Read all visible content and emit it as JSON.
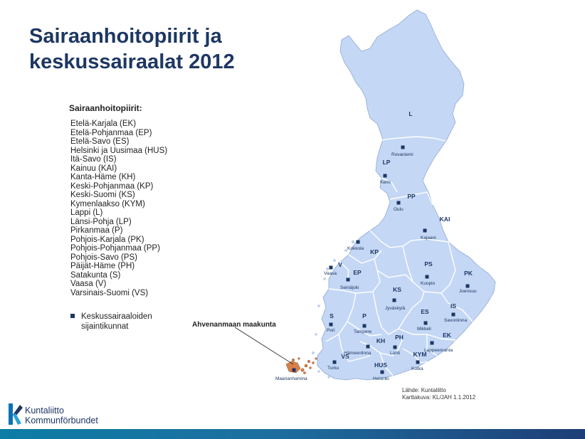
{
  "title": {
    "line1": "Sairaanhoitopiirit ja",
    "line2": "keskussairaalat 2012"
  },
  "legend": {
    "heading": "Sairaanhoitopiirit:",
    "districts": [
      "Etelä-Karjala (EK)",
      "Etelä-Pohjanmaa (EP)",
      "Etelä-Savo (ES)",
      "Helsinki ja Uusimaa (HUS)",
      "Itä-Savo (IS)",
      "Kainuu (KAI)",
      "Kanta-Häme (KH)",
      "Keski-Pohjanmaa (KP)",
      "Keski-Suomi (KS)",
      "Kymenlaakso (KYM)",
      "Lappi (L)",
      "Länsi-Pohja (LP)",
      "Pirkanmaa (P)",
      "Pohjois-Karjala (PK)",
      "Pohjois-Pohjanmaa (PP)",
      "Pohjois-Savo (PS)",
      "Päijät-Häme (PH)",
      "Satakunta (S)",
      "Vaasa (V)",
      "Varsinais-Suomi (VS)"
    ],
    "key_line1": "Keskussairaaloiden",
    "key_line2": "sijaintikunnat"
  },
  "map": {
    "district_codes": [
      "L",
      "LP",
      "PP",
      "KAI",
      "KP",
      "V",
      "EP",
      "PS",
      "PK",
      "KS",
      "S",
      "P",
      "ES",
      "IS",
      "KH",
      "PH",
      "VS",
      "HUS",
      "KYM",
      "EK"
    ],
    "cities": [
      "Rovaniemi",
      "Kemi",
      "Oulu",
      "Kajaani",
      "Kokkola",
      "Vaasa",
      "Seinäjoki",
      "Kuopio",
      "Joensuu",
      "Jyväskylä",
      "Pori",
      "Tampere",
      "Mikkeli",
      "Savonlinna",
      "Hämeenlinna",
      "Lahti",
      "Turku",
      "Lappeenranta",
      "Kotka",
      "Helsinki",
      "Maarianhamina"
    ],
    "callout": "Ahvenanmaan maakunta"
  },
  "source": {
    "line1": "Lähde: Kuntaliitto",
    "line2": "Karttakuva: KL/JAH 1.1.2012"
  },
  "logo": {
    "line1": "Kuntaliitto",
    "line2": "Kommunförbundet"
  },
  "colors": {
    "title": "#1d3763",
    "map_fill": "#c4d7f5",
    "border": "#ffffff",
    "marker": "#1d3763",
    "aland": "#d9804a"
  }
}
